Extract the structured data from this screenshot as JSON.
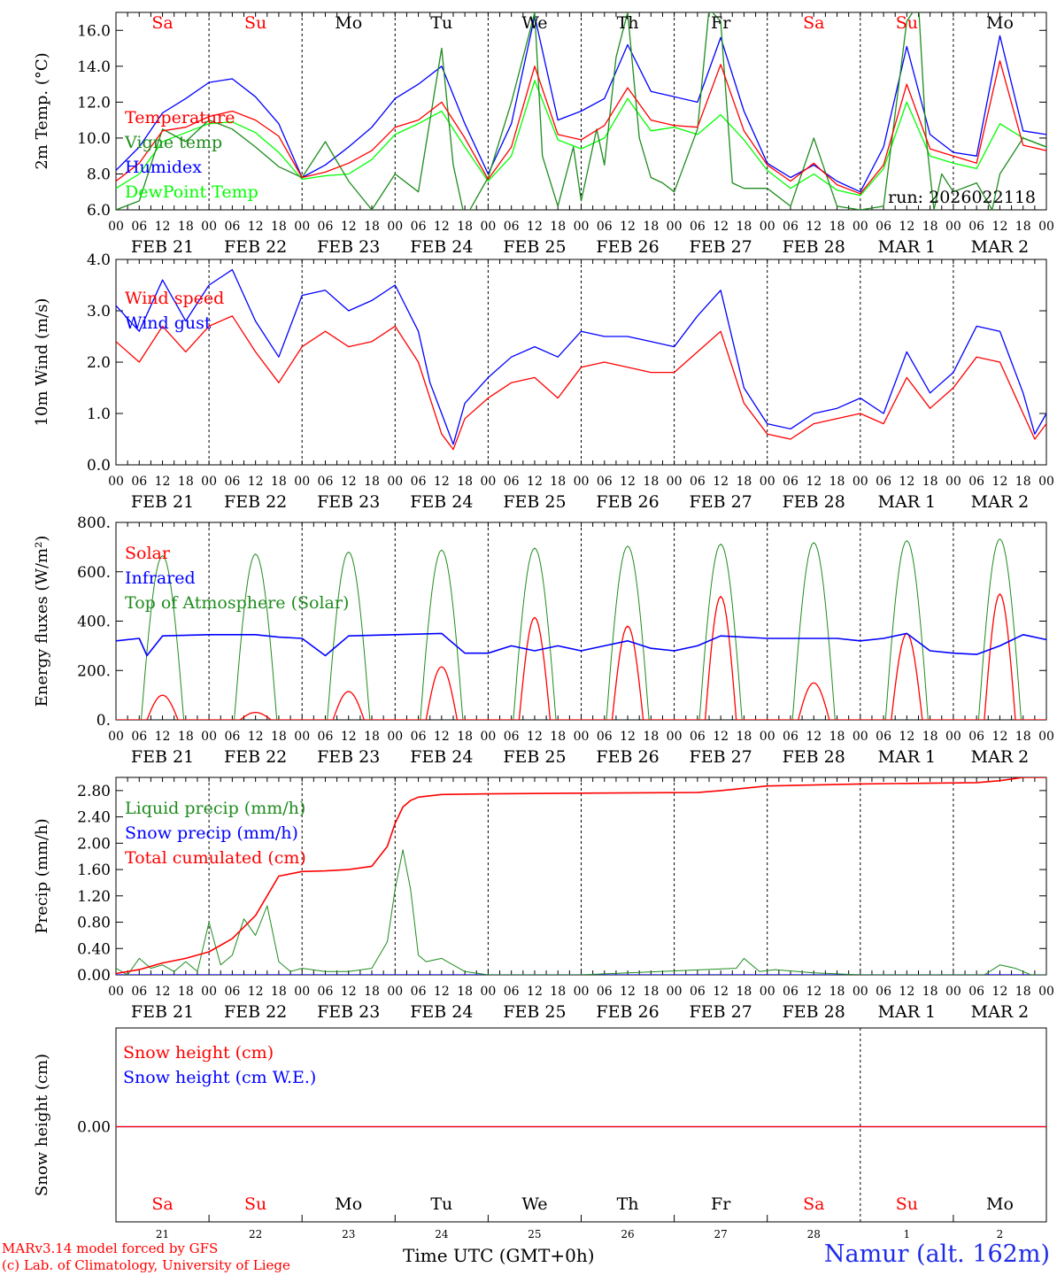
{
  "footer": {
    "credit_line1": "MARv3.14 model forced by GFS",
    "credit_line2": "(c) Lab. of Climatology, University of Liege",
    "xaxis_title": "Time UTC (GMT+0h)",
    "station": "Namur (alt. 162m)"
  },
  "chart_data": [
    {
      "type": "line",
      "panel": "temperature",
      "ylabel": "2m Temp. (°C)",
      "ylim": [
        6,
        17
      ],
      "yticks": [
        6,
        8,
        10,
        12,
        14,
        16
      ],
      "ytick_labels": [
        "6.0",
        "8.0",
        "10.0",
        "12.0",
        "14.0",
        "16.0"
      ],
      "annotation": "run: 2026022118",
      "day_names": [
        {
          "label": "Sa",
          "color": "#ff0000"
        },
        {
          "label": "Su",
          "color": "#ff0000"
        },
        {
          "label": "Mo",
          "color": "#000000"
        },
        {
          "label": "Tu",
          "color": "#000000"
        },
        {
          "label": "We",
          "color": "#000000"
        },
        {
          "label": "Th",
          "color": "#000000"
        },
        {
          "label": "Fr",
          "color": "#000000"
        },
        {
          "label": "Sa",
          "color": "#ff0000"
        },
        {
          "label": "Su",
          "color": "#ff0000"
        },
        {
          "label": "Mo",
          "color": "#000000"
        }
      ],
      "hour_ticks": [
        "00",
        "06",
        "12",
        "18"
      ],
      "date_labels": [
        "FEB 21",
        "FEB 22",
        "FEB 23",
        "FEB 24",
        "FEB 25",
        "FEB 26",
        "FEB 27",
        "FEB 28",
        "MAR 1",
        "MAR 2"
      ],
      "series": [
        {
          "name": "Temperature",
          "color": "#ff0000",
          "x": [
            0,
            6,
            12,
            18,
            24,
            30,
            36,
            42,
            48,
            54,
            60,
            66,
            72,
            78,
            84,
            90,
            96,
            102,
            108,
            114,
            120,
            126,
            132,
            138,
            144,
            150,
            156,
            162,
            168,
            174,
            180,
            186,
            192,
            198,
            204,
            210,
            216,
            222,
            228,
            234,
            240
          ],
          "y": [
            7.6,
            8.6,
            10.4,
            10.6,
            11.2,
            11.5,
            11.0,
            10.1,
            7.8,
            8.1,
            8.6,
            9.3,
            10.6,
            11.0,
            12.0,
            10.0,
            7.7,
            9.5,
            14.0,
            10.2,
            9.9,
            10.7,
            12.8,
            11.0,
            10.7,
            10.6,
            14.1,
            10.4,
            8.5,
            7.6,
            8.6,
            7.4,
            6.9,
            8.5,
            13.0,
            9.4,
            9.0,
            8.6,
            14.3,
            9.6,
            9.3
          ]
        },
        {
          "name": "Vigne temp",
          "color": "#1e8c1e",
          "x": [
            0,
            6,
            12,
            18,
            24,
            30,
            36,
            42,
            48,
            54,
            60,
            66,
            72,
            78,
            84,
            87,
            90,
            96,
            102,
            108,
            110,
            114,
            118,
            120,
            124,
            126,
            129,
            132,
            135,
            138,
            141,
            144,
            150,
            153,
            156,
            159,
            162,
            168,
            174,
            180,
            186,
            192,
            198,
            204,
            207,
            209,
            211,
            213,
            216,
            222,
            226,
            228,
            234,
            240
          ],
          "y": [
            6.0,
            6.5,
            10.5,
            9.8,
            11.0,
            10.5,
            9.5,
            8.4,
            7.8,
            9.8,
            7.6,
            6.0,
            8.0,
            7.0,
            15.0,
            8.5,
            5.5,
            7.8,
            12.0,
            17.0,
            9.0,
            6.2,
            9.5,
            6.5,
            10.5,
            8.5,
            14.5,
            17.0,
            10.0,
            7.8,
            7.5,
            7.0,
            10.5,
            17.2,
            16.5,
            7.5,
            7.2,
            7.2,
            6.2,
            10.0,
            6.2,
            6.0,
            6.2,
            16.5,
            17.5,
            10.0,
            6.0,
            8.0,
            7.0,
            7.5,
            6.0,
            8.0,
            10.0,
            9.5
          ]
        },
        {
          "name": "Humidex",
          "color": "#0000ff",
          "x": [
            0,
            6,
            12,
            18,
            24,
            30,
            36,
            42,
            48,
            54,
            60,
            66,
            72,
            78,
            84,
            90,
            96,
            102,
            108,
            114,
            120,
            126,
            132,
            138,
            144,
            150,
            156,
            162,
            168,
            174,
            180,
            186,
            192,
            198,
            204,
            210,
            216,
            222,
            228,
            234,
            240
          ],
          "y": [
            8.2,
            9.5,
            11.4,
            12.2,
            13.1,
            13.3,
            12.3,
            10.8,
            7.8,
            8.5,
            9.5,
            10.6,
            12.2,
            13.0,
            14.0,
            10.8,
            8.0,
            10.8,
            16.8,
            11.0,
            11.5,
            12.2,
            15.2,
            12.6,
            12.3,
            12.0,
            15.6,
            11.5,
            8.6,
            7.8,
            8.5,
            7.6,
            7.0,
            9.5,
            15.1,
            10.2,
            9.2,
            9.0,
            15.7,
            10.4,
            10.2
          ]
        },
        {
          "name": "DewPoint Temp",
          "color": "#00ff00",
          "x": [
            0,
            6,
            12,
            18,
            24,
            30,
            36,
            42,
            48,
            54,
            60,
            66,
            72,
            78,
            84,
            90,
            96,
            102,
            108,
            114,
            120,
            126,
            132,
            138,
            144,
            150,
            156,
            162,
            168,
            174,
            180,
            186,
            192,
            198,
            204,
            210,
            216,
            222,
            228,
            234,
            240
          ],
          "y": [
            7.2,
            8.0,
            9.8,
            10.3,
            10.8,
            10.9,
            10.3,
            9.2,
            7.7,
            7.9,
            8.0,
            8.8,
            10.2,
            10.8,
            11.5,
            9.5,
            7.6,
            9.0,
            13.2,
            9.9,
            9.4,
            10.0,
            12.2,
            10.4,
            10.6,
            10.2,
            11.3,
            9.9,
            8.2,
            7.2,
            8.0,
            7.1,
            6.8,
            8.3,
            12.0,
            9.0,
            8.6,
            8.3,
            10.8,
            10.0,
            9.5
          ]
        }
      ]
    },
    {
      "type": "line",
      "panel": "wind",
      "ylabel": "10m Wind (m/s)",
      "ylim": [
        0,
        4
      ],
      "yticks": [
        0,
        1,
        2,
        3,
        4
      ],
      "ytick_labels": [
        "0.0",
        "1.0",
        "2.0",
        "3.0",
        "4.0"
      ],
      "hour_ticks": [
        "00",
        "06",
        "12",
        "18"
      ],
      "date_labels": [
        "FEB 21",
        "FEB 22",
        "FEB 23",
        "FEB 24",
        "FEB 25",
        "FEB 26",
        "FEB 27",
        "FEB 28",
        "MAR 1",
        "MAR 2"
      ],
      "series": [
        {
          "name": "Wind speed",
          "color": "#ff0000",
          "x": [
            0,
            6,
            12,
            18,
            24,
            30,
            36,
            42,
            48,
            54,
            60,
            66,
            72,
            78,
            81,
            84,
            87,
            90,
            96,
            102,
            108,
            114,
            120,
            126,
            132,
            138,
            144,
            150,
            156,
            162,
            168,
            174,
            180,
            186,
            192,
            198,
            204,
            210,
            216,
            222,
            228,
            234,
            237,
            240
          ],
          "y": [
            2.4,
            2.0,
            2.7,
            2.2,
            2.7,
            2.9,
            2.2,
            1.6,
            2.3,
            2.6,
            2.3,
            2.4,
            2.7,
            2.0,
            1.3,
            0.6,
            0.3,
            0.9,
            1.3,
            1.6,
            1.7,
            1.3,
            1.9,
            2.0,
            1.9,
            1.8,
            1.8,
            2.2,
            2.6,
            1.2,
            0.6,
            0.5,
            0.8,
            0.9,
            1.0,
            0.8,
            1.7,
            1.1,
            1.5,
            2.1,
            2.0,
            1.0,
            0.5,
            0.8
          ]
        },
        {
          "name": "Wind gust",
          "color": "#0000ff",
          "x": [
            0,
            6,
            12,
            18,
            24,
            30,
            36,
            42,
            48,
            54,
            60,
            66,
            72,
            78,
            81,
            84,
            87,
            90,
            96,
            102,
            108,
            114,
            120,
            126,
            132,
            138,
            144,
            150,
            156,
            162,
            168,
            174,
            180,
            186,
            192,
            198,
            204,
            210,
            216,
            222,
            228,
            234,
            237,
            240
          ],
          "y": [
            3.1,
            2.6,
            3.6,
            2.8,
            3.5,
            3.8,
            2.8,
            2.1,
            3.3,
            3.4,
            3.0,
            3.2,
            3.5,
            2.6,
            1.6,
            1.0,
            0.4,
            1.2,
            1.7,
            2.1,
            2.3,
            2.1,
            2.6,
            2.5,
            2.5,
            2.4,
            2.3,
            2.9,
            3.4,
            1.5,
            0.8,
            0.7,
            1.0,
            1.1,
            1.3,
            1.0,
            2.2,
            1.4,
            1.8,
            2.7,
            2.6,
            1.4,
            0.6,
            1.0
          ]
        }
      ]
    },
    {
      "type": "line",
      "panel": "energy",
      "ylabel": "Energy fluxes (W/m²)",
      "ylim": [
        0,
        800
      ],
      "yticks": [
        0,
        200,
        400,
        600,
        800
      ],
      "ytick_labels": [
        "0.",
        "200.",
        "400.",
        "600.",
        "800."
      ],
      "hour_ticks": [
        "00",
        "06",
        "12",
        "18"
      ],
      "date_labels": [
        "FEB 21",
        "FEB 22",
        "FEB 23",
        "FEB 24",
        "FEB 25",
        "FEB 26",
        "FEB 27",
        "FEB 28",
        "MAR 1",
        "MAR 2"
      ],
      "series": [
        {
          "name": "Solar",
          "color": "#ff0000",
          "daily_peak": [
            100,
            30,
            115,
            215,
            415,
            380,
            500,
            150,
            350,
            510
          ]
        },
        {
          "name": "Infrared",
          "color": "#0000ff",
          "x": [
            0,
            6,
            8,
            12,
            24,
            36,
            42,
            48,
            54,
            60,
            72,
            84,
            90,
            96,
            102,
            108,
            114,
            120,
            126,
            132,
            138,
            144,
            150,
            156,
            168,
            180,
            186,
            192,
            198,
            204,
            210,
            216,
            222,
            228,
            234,
            240
          ],
          "y": [
            320,
            330,
            260,
            340,
            345,
            345,
            335,
            330,
            260,
            340,
            345,
            350,
            270,
            270,
            300,
            280,
            300,
            280,
            300,
            320,
            290,
            280,
            300,
            340,
            330,
            330,
            330,
            320,
            330,
            350,
            280,
            270,
            265,
            300,
            345,
            325
          ]
        },
        {
          "name": "Top of Atmosphere (Solar)",
          "color": "#1e8c1e",
          "daily_peak": [
            665,
            672,
            680,
            688,
            696,
            704,
            712,
            718,
            726,
            733
          ]
        }
      ]
    },
    {
      "type": "line",
      "panel": "precip",
      "ylabel": "Precip (mm/h)",
      "ylim": [
        0,
        3.0
      ],
      "yticks": [
        0,
        0.4,
        0.8,
        1.2,
        1.6,
        2.0,
        2.4,
        2.8
      ],
      "ytick_labels": [
        "0.00",
        "0.40",
        "0.80",
        "1.20",
        "1.60",
        "2.00",
        "2.40",
        "2.80"
      ],
      "hour_ticks": [
        "00",
        "06",
        "12",
        "18"
      ],
      "date_labels": [
        "FEB 21",
        "FEB 22",
        "FEB 23",
        "FEB 24",
        "FEB 25",
        "FEB 26",
        "FEB 27",
        "FEB 28",
        "MAR 1",
        "MAR 2"
      ],
      "series": [
        {
          "name": "Liquid precip (mm/h)",
          "color": "#1e8c1e",
          "x": [
            0,
            3,
            6,
            9,
            12,
            15,
            18,
            21,
            24,
            27,
            30,
            33,
            36,
            39,
            42,
            45,
            48,
            54,
            60,
            66,
            70,
            72,
            74,
            76,
            78,
            80,
            84,
            90,
            96,
            120,
            160,
            162,
            166,
            170,
            180,
            192,
            224,
            228,
            232,
            236,
            240
          ],
          "y": [
            0.1,
            0.0,
            0.25,
            0.1,
            0.15,
            0.05,
            0.2,
            0.05,
            0.8,
            0.15,
            0.3,
            0.85,
            0.6,
            1.05,
            0.2,
            0.05,
            0.1,
            0.05,
            0.05,
            0.1,
            0.5,
            1.3,
            1.9,
            1.3,
            0.3,
            0.2,
            0.25,
            0.05,
            0.0,
            0.0,
            0.1,
            0.25,
            0.05,
            0.08,
            0.03,
            0.0,
            0.0,
            0.15,
            0.1,
            0.0,
            0.0
          ]
        },
        {
          "name": "Snow precip (mm/h)",
          "color": "#0000ff",
          "x": [
            0,
            240
          ],
          "y": [
            0.0,
            0.0
          ]
        },
        {
          "name": "Total cumulated (cm)",
          "color": "#ff0000",
          "x": [
            0,
            6,
            12,
            18,
            24,
            30,
            36,
            42,
            48,
            54,
            60,
            66,
            70,
            72,
            74,
            76,
            78,
            84,
            96,
            120,
            150,
            156,
            168,
            192,
            222,
            228,
            234,
            240
          ],
          "y": [
            0.02,
            0.08,
            0.18,
            0.25,
            0.35,
            0.55,
            0.9,
            1.5,
            1.57,
            1.58,
            1.6,
            1.65,
            1.95,
            2.3,
            2.55,
            2.65,
            2.7,
            2.74,
            2.75,
            2.76,
            2.77,
            2.8,
            2.87,
            2.9,
            2.92,
            2.95,
            3.0,
            3.0
          ]
        }
      ]
    },
    {
      "type": "line",
      "panel": "snow",
      "ylabel": "Snow height (cm)",
      "yticks": [
        0
      ],
      "ytick_labels": [
        "0.00"
      ],
      "day_names": [
        {
          "label": "Sa",
          "color": "#ff0000"
        },
        {
          "label": "Su",
          "color": "#ff0000"
        },
        {
          "label": "Mo",
          "color": "#000000"
        },
        {
          "label": "Tu",
          "color": "#000000"
        },
        {
          "label": "We",
          "color": "#000000"
        },
        {
          "label": "Th",
          "color": "#000000"
        },
        {
          "label": "Fr",
          "color": "#000000"
        },
        {
          "label": "Sa",
          "color": "#ff0000"
        },
        {
          "label": "Su",
          "color": "#ff0000"
        },
        {
          "label": "Mo",
          "color": "#000000"
        }
      ],
      "day_numbers": [
        "21",
        "22",
        "23",
        "24",
        "25",
        "26",
        "27",
        "28",
        "1",
        "2"
      ],
      "series": [
        {
          "name": "Snow height (cm)",
          "color": "#ff0000",
          "x": [
            0,
            240
          ],
          "y": [
            0,
            0
          ]
        },
        {
          "name": "Snow height (cm W.E.)",
          "color": "#0000ff",
          "x": [
            0,
            240
          ],
          "y": [
            0,
            0
          ]
        }
      ]
    }
  ]
}
